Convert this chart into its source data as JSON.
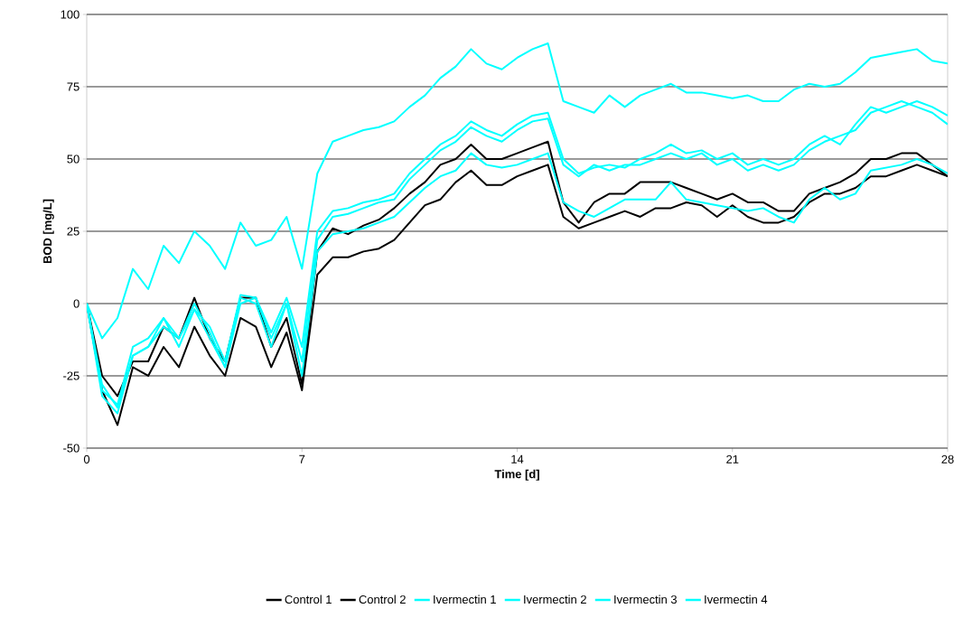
{
  "chart_data": {
    "type": "line",
    "xlabel": "Time [d]",
    "ylabel": "BOD [mg/L]",
    "x": [
      0,
      0.5,
      1,
      1.5,
      2,
      2.5,
      3,
      3.5,
      4,
      4.5,
      5,
      5.5,
      6,
      6.5,
      7,
      7.5,
      8,
      8.5,
      9,
      9.5,
      10,
      10.5,
      11,
      11.5,
      12,
      12.5,
      13,
      13.5,
      14,
      14.5,
      15,
      15.5,
      16,
      16.5,
      17,
      17.5,
      18,
      18.5,
      19,
      19.5,
      20,
      20.5,
      21,
      21.5,
      22,
      22.5,
      23,
      23.5,
      24,
      24.5,
      25,
      25.5,
      26,
      26.5,
      27,
      27.5,
      28
    ],
    "xlim": [
      0,
      28
    ],
    "xticks": [
      0,
      7,
      14,
      21,
      28
    ],
    "ylim": [
      -50,
      100
    ],
    "yticks": [
      -50,
      -25,
      0,
      25,
      50,
      75,
      100
    ],
    "grid": "y",
    "legend": "bottom",
    "marker": "none",
    "line_style": "solid",
    "series": [
      {
        "name": "Control 1",
        "color": "#000000",
        "values": [
          0,
          -25,
          -32,
          -20,
          -20,
          -8,
          -12,
          2,
          -12,
          -20,
          2,
          2,
          -15,
          -5,
          -28,
          18,
          26,
          24,
          27,
          29,
          33,
          38,
          42,
          48,
          50,
          55,
          50,
          50,
          52,
          54,
          56,
          35,
          28,
          35,
          38,
          38,
          42,
          42,
          42,
          40,
          38,
          36,
          38,
          35,
          35,
          32,
          32,
          38,
          40,
          42,
          45,
          50,
          50,
          52,
          52,
          48,
          44
        ]
      },
      {
        "name": "Control 2",
        "color": "#000000",
        "values": [
          0,
          -30,
          -42,
          -22,
          -25,
          -15,
          -22,
          -8,
          -18,
          -25,
          -5,
          -8,
          -22,
          -10,
          -30,
          10,
          16,
          16,
          18,
          19,
          22,
          28,
          34,
          36,
          42,
          46,
          41,
          41,
          44,
          46,
          48,
          30,
          26,
          28,
          30,
          32,
          30,
          33,
          33,
          35,
          34,
          30,
          34,
          30,
          28,
          28,
          30,
          35,
          38,
          38,
          40,
          44,
          44,
          46,
          48,
          46,
          44
        ]
      },
      {
        "name": "Ivermectin 1",
        "color": "#00ffff",
        "values": [
          0,
          -12,
          -5,
          12,
          5,
          20,
          14,
          25,
          20,
          12,
          28,
          20,
          22,
          30,
          12,
          45,
          56,
          58,
          60,
          61,
          63,
          68,
          72,
          78,
          82,
          88,
          83,
          81,
          85,
          88,
          90,
          70,
          68,
          66,
          72,
          68,
          72,
          74,
          76,
          73,
          73,
          72,
          71,
          72,
          70,
          70,
          74,
          76,
          75,
          76,
          80,
          85,
          86,
          87,
          88,
          84,
          83
        ]
      },
      {
        "name": "Ivermectin 2",
        "color": "#00ffff",
        "values": [
          0,
          -30,
          -35,
          -15,
          -12,
          -5,
          -15,
          -2,
          -8,
          -20,
          3,
          2,
          -10,
          2,
          -15,
          25,
          32,
          33,
          35,
          36,
          38,
          45,
          50,
          55,
          58,
          63,
          60,
          58,
          62,
          65,
          66,
          50,
          45,
          47,
          48,
          47,
          50,
          52,
          55,
          52,
          53,
          50,
          52,
          48,
          50,
          48,
          50,
          55,
          58,
          55,
          62,
          68,
          66,
          68,
          70,
          68,
          65
        ]
      },
      {
        "name": "Ivermectin 3",
        "color": "#00ffff",
        "values": [
          0,
          -32,
          -38,
          -18,
          -15,
          -8,
          -12,
          0,
          -10,
          -22,
          2,
          0,
          -15,
          0,
          -20,
          22,
          30,
          31,
          33,
          35,
          36,
          43,
          48,
          53,
          56,
          61,
          58,
          56,
          60,
          63,
          64,
          48,
          44,
          48,
          46,
          48,
          48,
          50,
          52,
          50,
          52,
          48,
          50,
          46,
          48,
          46,
          48,
          53,
          56,
          58,
          60,
          66,
          68,
          70,
          68,
          66,
          62
        ]
      },
      {
        "name": "Ivermectin 4",
        "color": "#00ffff",
        "values": [
          0,
          -28,
          -36,
          -18,
          -15,
          -5,
          -12,
          -2,
          -12,
          -22,
          0,
          2,
          -12,
          0,
          -25,
          18,
          24,
          25,
          26,
          28,
          30,
          35,
          40,
          44,
          46,
          52,
          48,
          47,
          48,
          50,
          52,
          35,
          32,
          30,
          33,
          36,
          36,
          36,
          42,
          36,
          35,
          34,
          33,
          32,
          33,
          30,
          28,
          36,
          40,
          36,
          38,
          46,
          47,
          48,
          50,
          48,
          45
        ]
      }
    ]
  }
}
